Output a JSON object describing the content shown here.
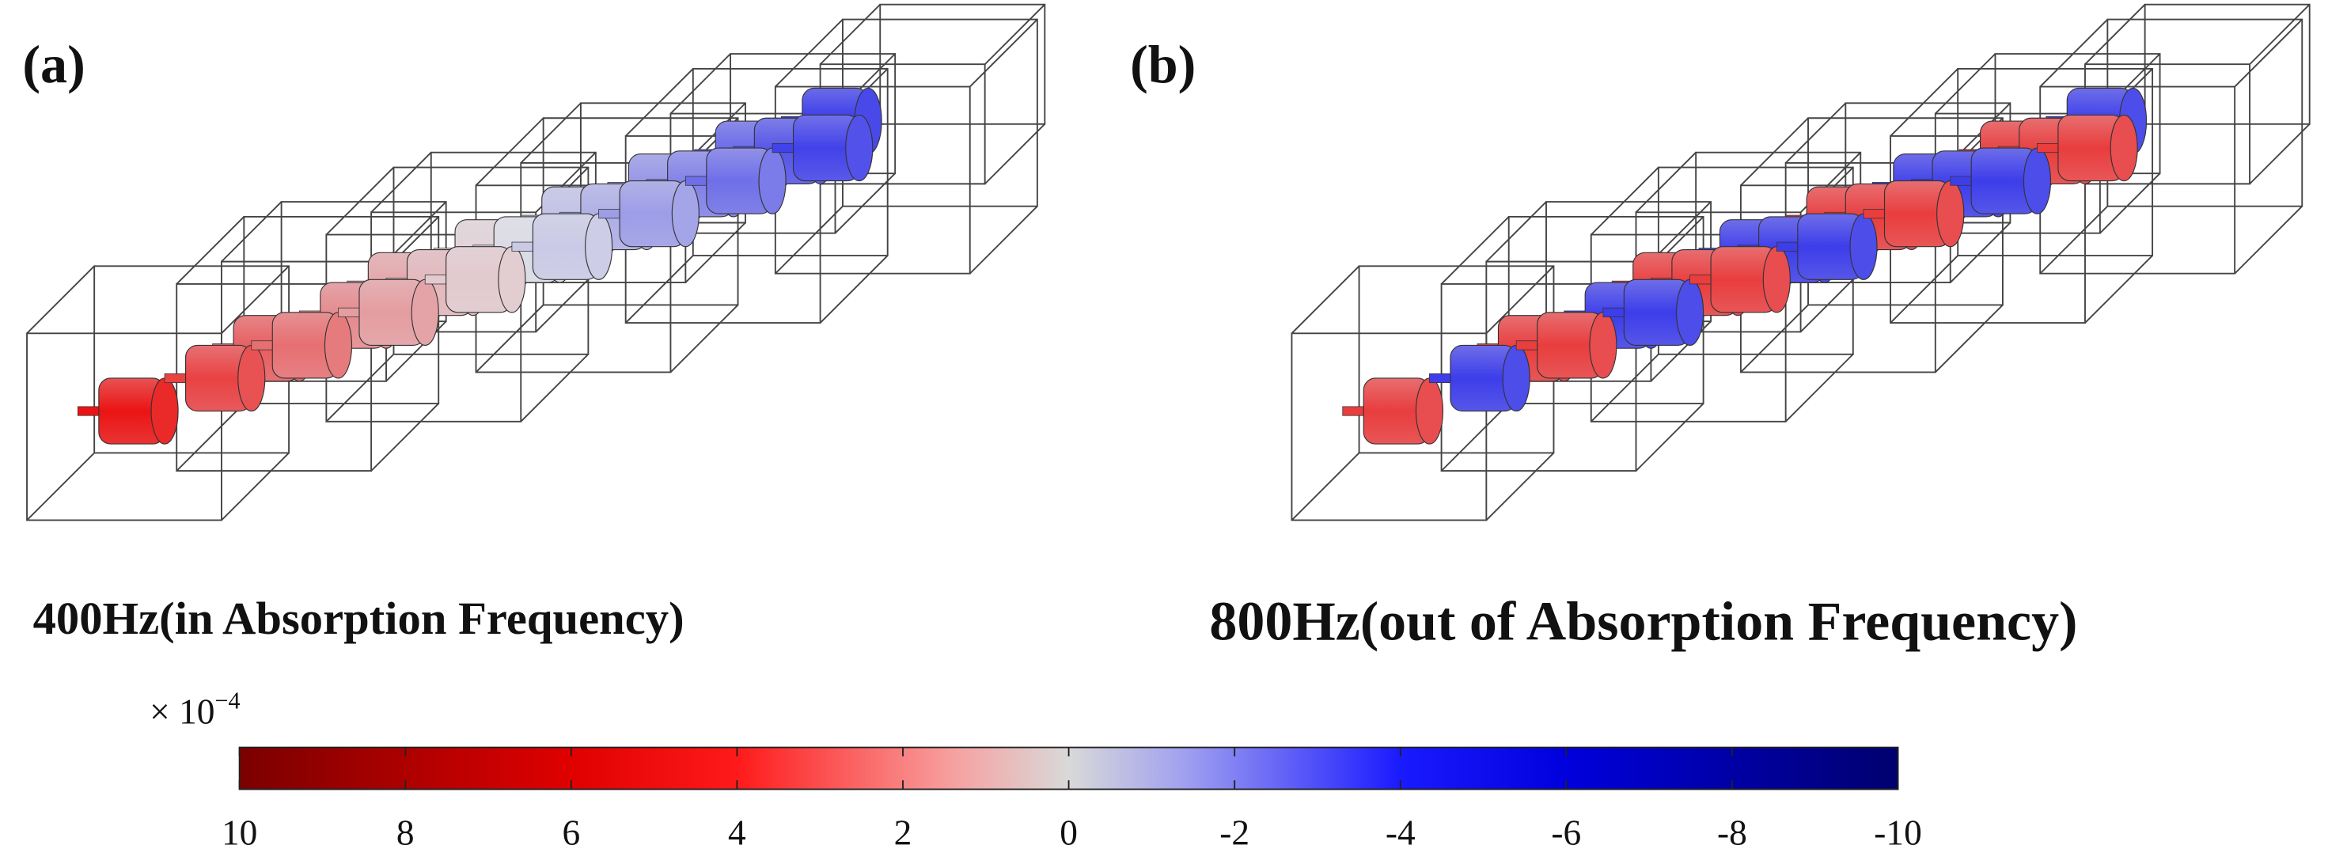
{
  "panels": [
    {
      "label": "(a)",
      "caption": "400Hz(in Absorption Frequency)"
    },
    {
      "label": "(b)",
      "caption": "800Hz(out of Absorption Frequency)"
    }
  ],
  "colorbar": {
    "multiplier": "× 10",
    "exponent": "−4",
    "lim": [
      10,
      -10
    ],
    "ticks": [
      10,
      8,
      6,
      4,
      2,
      0,
      -2,
      -4,
      -6,
      -8,
      -10
    ]
  }
}
